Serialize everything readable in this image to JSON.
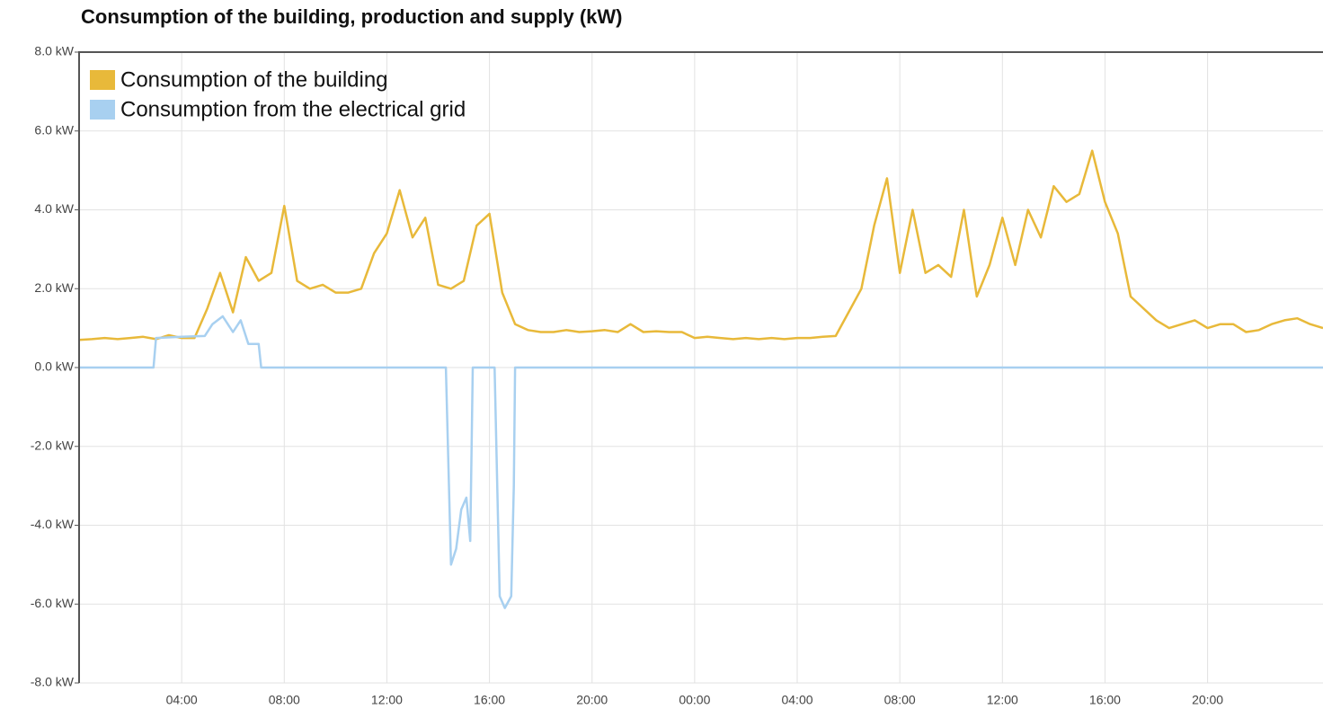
{
  "chart_data": {
    "type": "line",
    "title": "Consumption of the building, production and supply (kW)",
    "xlim": [
      0,
      48.5
    ],
    "xticks": [
      {
        "value": 4,
        "label": "04:00"
      },
      {
        "value": 8,
        "label": "08:00"
      },
      {
        "value": 12,
        "label": "12:00"
      },
      {
        "value": 16,
        "label": "16:00"
      },
      {
        "value": 20,
        "label": "20:00"
      },
      {
        "value": 24,
        "label": "00:00"
      },
      {
        "value": 28,
        "label": "04:00"
      },
      {
        "value": 32,
        "label": "08:00"
      },
      {
        "value": 36,
        "label": "12:00"
      },
      {
        "value": 40,
        "label": "16:00"
      },
      {
        "value": 44,
        "label": "20:00"
      }
    ],
    "ylim": [
      -8,
      8
    ],
    "yticks": [
      {
        "value": 8,
        "label": "8.0 kW"
      },
      {
        "value": 6,
        "label": "6.0 kW"
      },
      {
        "value": 4,
        "label": "4.0 kW"
      },
      {
        "value": 2,
        "label": "2.0 kW"
      },
      {
        "value": 0,
        "label": "0.0 kW"
      },
      {
        "value": -2,
        "label": "-2.0 kW"
      },
      {
        "value": -4,
        "label": "-4.0 kW"
      },
      {
        "value": -6,
        "label": "-6.0 kW"
      },
      {
        "value": -8,
        "label": "-8.0 kW"
      }
    ],
    "grid": true,
    "legend": "top-left",
    "series": [
      {
        "name": "Consumption of the building",
        "color": "#e8b93a",
        "x": [
          0,
          0.5,
          1,
          1.5,
          2,
          2.5,
          3,
          3.5,
          4,
          4.5,
          5,
          5.5,
          6,
          6.5,
          7,
          7.5,
          8,
          8.5,
          9,
          9.5,
          10,
          10.5,
          11,
          11.5,
          12,
          12.5,
          13,
          13.5,
          14,
          14.5,
          15,
          15.5,
          16,
          16.5,
          17,
          17.5,
          18,
          18.5,
          19,
          19.5,
          20,
          20.5,
          21,
          21.5,
          22,
          22.5,
          23,
          23.5,
          24,
          24.5,
          25,
          25.5,
          26,
          26.5,
          27,
          27.5,
          28,
          28.5,
          29,
          29.5,
          30,
          30.5,
          31,
          31.5,
          32,
          32.5,
          33,
          33.5,
          34,
          34.5,
          35,
          35.5,
          36,
          36.5,
          37,
          37.5,
          38,
          38.5,
          39,
          39.5,
          40,
          40.5,
          41,
          41.5,
          42,
          42.5,
          43,
          43.5,
          44,
          44.5,
          45,
          45.5,
          46,
          46.5,
          47,
          47.5,
          48,
          48.5
        ],
        "values": [
          0.7,
          0.72,
          0.75,
          0.72,
          0.75,
          0.78,
          0.72,
          0.82,
          0.75,
          0.75,
          1.5,
          2.4,
          1.4,
          2.8,
          2.2,
          2.4,
          4.1,
          2.2,
          2.0,
          2.1,
          1.9,
          1.9,
          2.0,
          2.9,
          3.4,
          4.5,
          3.3,
          3.8,
          2.1,
          2.0,
          2.2,
          3.6,
          3.9,
          1.9,
          1.1,
          0.95,
          0.9,
          0.9,
          0.95,
          0.9,
          0.92,
          0.95,
          0.9,
          1.1,
          0.9,
          0.92,
          0.9,
          0.9,
          0.75,
          0.78,
          0.75,
          0.72,
          0.75,
          0.72,
          0.75,
          0.72,
          0.75,
          0.75,
          0.78,
          0.8,
          1.4,
          2.0,
          3.6,
          4.8,
          2.4,
          4.0,
          2.4,
          2.6,
          2.3,
          4.0,
          1.8,
          2.6,
          3.8,
          2.6,
          4.0,
          3.3,
          4.6,
          4.2,
          4.4,
          5.5,
          4.2,
          3.4,
          1.8,
          1.5,
          1.2,
          1.0,
          1.1,
          1.2,
          1.0,
          1.1,
          1.1,
          0.9,
          0.95,
          1.1,
          1.2,
          1.25,
          1.1,
          1.0
        ]
      },
      {
        "name": "Consumption from the electrical grid",
        "color": "#a8d0f0",
        "x": [
          0,
          2.9,
          3.0,
          4,
          4.9,
          5.2,
          5.6,
          6,
          6.3,
          6.6,
          7.0,
          7.1,
          14.3,
          14.5,
          14.7,
          14.9,
          15.1,
          15.25,
          15.35,
          16.2,
          16.4,
          16.6,
          16.85,
          16.95,
          17.0,
          48.5
        ],
        "values": [
          0,
          0,
          0.75,
          0.78,
          0.8,
          1.1,
          1.3,
          0.9,
          1.2,
          0.6,
          0.6,
          0,
          0,
          -5.0,
          -4.6,
          -3.6,
          -3.3,
          -4.4,
          0,
          0,
          -5.8,
          -6.1,
          -5.8,
          -3.0,
          0,
          0
        ]
      }
    ]
  }
}
